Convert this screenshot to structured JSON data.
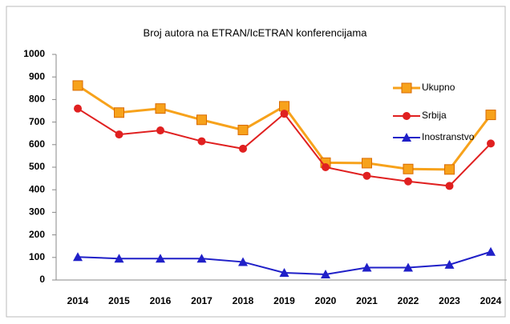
{
  "chart_data": {
    "type": "line",
    "title": "Broj autora  na ETRAN/IcETRAN konferencijama",
    "categories": [
      "2014",
      "2015",
      "2016",
      "2017",
      "2018",
      "2019",
      "2020",
      "2021",
      "2022",
      "2023",
      "2024"
    ],
    "series": [
      {
        "name": "Ukupno",
        "color": "#f7a21b",
        "marker": "square",
        "values": [
          862,
          742,
          760,
          710,
          665,
          770,
          520,
          518,
          492,
          490,
          732
        ]
      },
      {
        "name": "Srbija",
        "color": "#e02020",
        "marker": "circle",
        "values": [
          760,
          645,
          663,
          615,
          582,
          737,
          500,
          462,
          437,
          417,
          605
        ]
      },
      {
        "name": "Inostranstvo",
        "color": "#2020c8",
        "marker": "triangle",
        "values": [
          102,
          95,
          95,
          95,
          80,
          32,
          25,
          55,
          55,
          68,
          125
        ]
      }
    ],
    "ylim": [
      0,
      1000
    ],
    "yticks": [
      0,
      100,
      200,
      300,
      400,
      500,
      600,
      700,
      800,
      900,
      1000
    ],
    "grid": false,
    "legend": "right"
  }
}
